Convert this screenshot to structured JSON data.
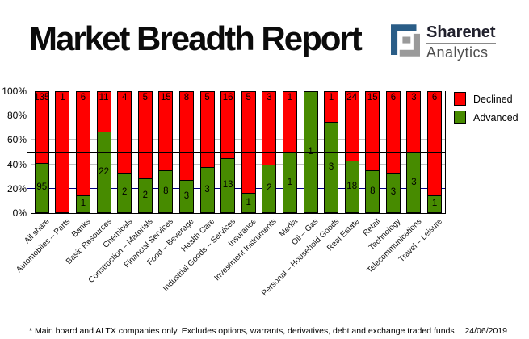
{
  "title": "Market Breadth Report",
  "logo": {
    "brand": "Sharenet",
    "subtitle": "Analytics"
  },
  "footnote": "* Main board and ALTX companies only. Excludes options, warrants, derivatives, debt and exchange traded funds",
  "date": "24/06/2019",
  "colors": {
    "declined": "#ff0000",
    "advanced": "#478b00",
    "grid_navy": "#000080",
    "grid_gray": "#c0c0c0",
    "reference_line": "#000000",
    "logo_blue": "#2a5d87",
    "logo_gray": "#9a9a9a"
  },
  "chart_data": {
    "type": "bar",
    "subtype": "stacked-100-percent",
    "title": "Market Breadth Report",
    "categories": [
      "All share",
      "Automobiles – Parts",
      "Banks",
      "Basic Resources",
      "Chemicals",
      "Construction – Materials",
      "Financial Services",
      "Food – Beverage",
      "Health Care",
      "Industrial Goods – Services",
      "Insurance",
      "Investment Instruments",
      "Media",
      "Oil – Gas",
      "Personal – Household Goods",
      "Real Estate",
      "Retail",
      "Technology",
      "Telecommunications",
      "Travel – Leisure"
    ],
    "series": [
      {
        "name": "Declined",
        "color": "#ff0000",
        "values": [
          135,
          1,
          6,
          11,
          4,
          5,
          15,
          8,
          5,
          16,
          5,
          3,
          1,
          0,
          1,
          24,
          15,
          6,
          3,
          6
        ]
      },
      {
        "name": "Advanced",
        "color": "#478b00",
        "values": [
          95,
          0,
          1,
          22,
          2,
          2,
          8,
          3,
          3,
          13,
          1,
          2,
          1,
          1,
          3,
          18,
          8,
          3,
          3,
          1
        ]
      }
    ],
    "yticks": [
      "100%",
      "80%",
      "60%",
      "40%",
      "20%",
      "0%"
    ],
    "ylim": [
      0,
      100
    ],
    "gridlines_pct": [
      20,
      40,
      60,
      80
    ],
    "reference_line_pct": 50,
    "legend": [
      "Declined",
      "Advanced"
    ],
    "legend_position": "top-right",
    "bar_labels": "segment counts printed inside bars"
  }
}
